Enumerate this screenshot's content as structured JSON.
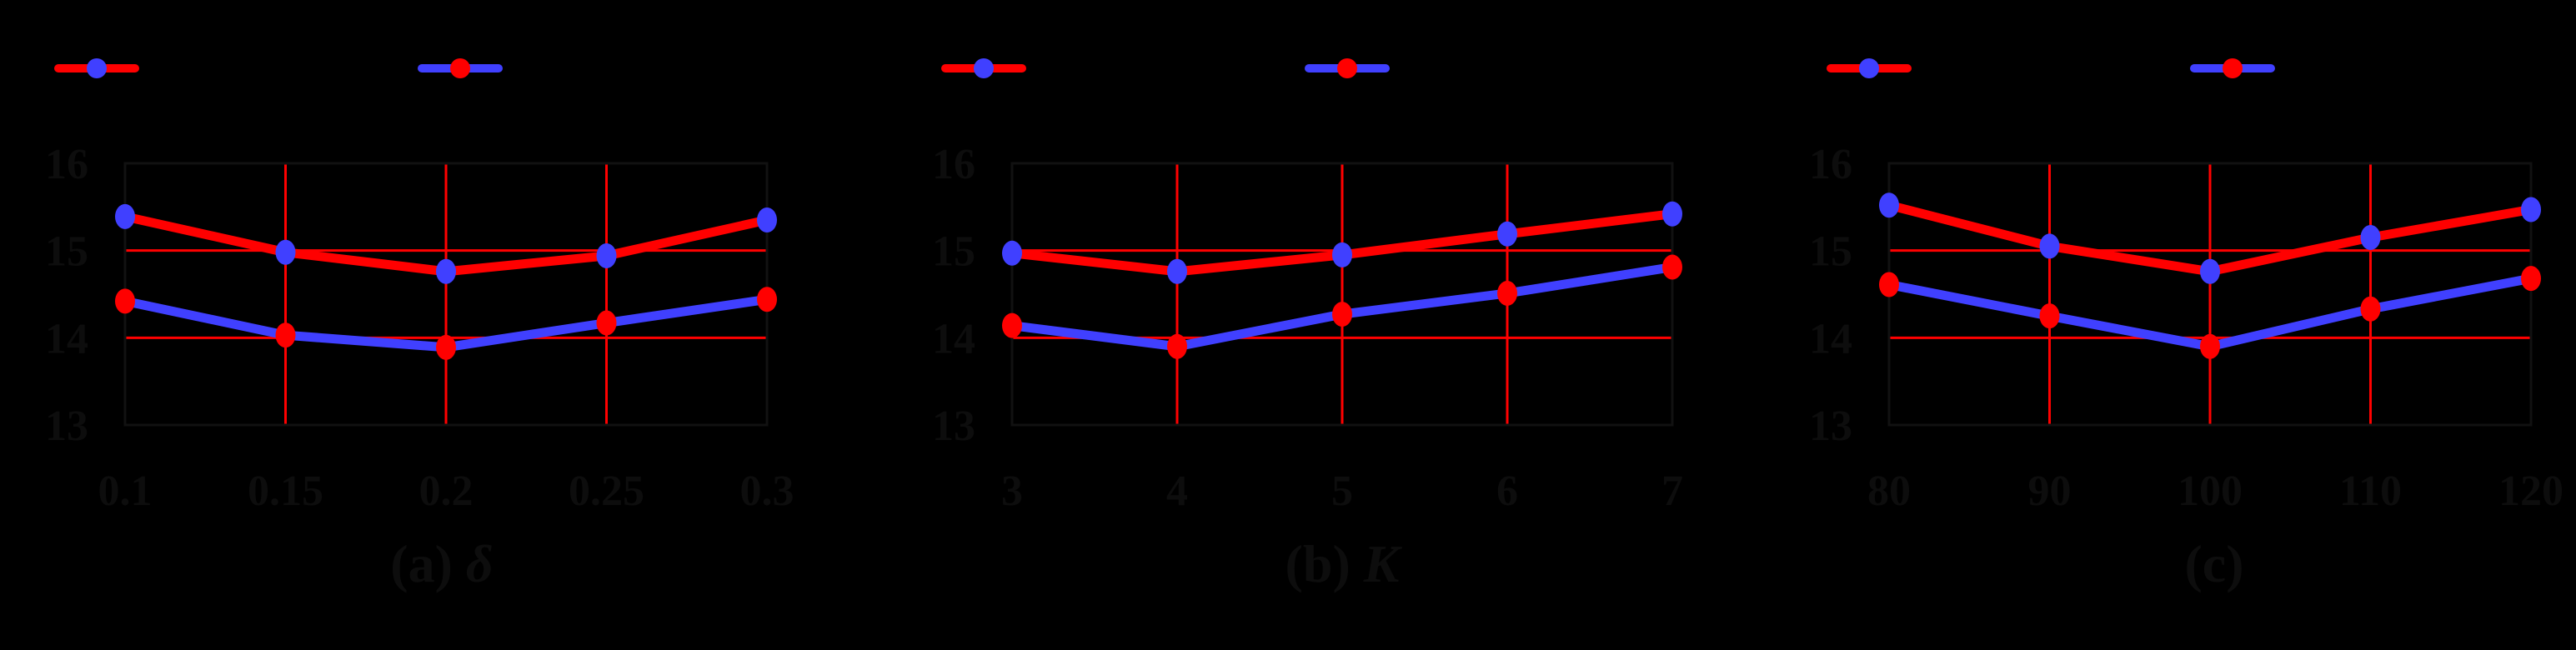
{
  "colors": {
    "background": "#000000",
    "series_red": "#ff0000",
    "series_blue": "#4040ff",
    "grid": "#ff0000",
    "frame": "#111111",
    "text": "#0d0d0d"
  },
  "legend": [
    {
      "name": "Series 1 (red line, blue markers)",
      "label": "",
      "line_color": "#ff0000",
      "marker_color": "#4040ff"
    },
    {
      "name": "Series 2 (blue line, red markers)",
      "label": "",
      "line_color": "#4040ff",
      "marker_color": "#ff0000"
    }
  ],
  "chart_data": [
    {
      "type": "line",
      "title": "(a) δ",
      "caption_prefix": "(a)",
      "caption_symbol": "δ",
      "xlabel": "δ",
      "ylabel": "",
      "categories": [
        "0.1",
        "0.15",
        "0.2",
        "0.25",
        "0.3"
      ],
      "yticks": [
        "13",
        "14",
        "15",
        "16"
      ],
      "ylim": [
        13,
        16
      ],
      "grid": true,
      "legend_position": "top",
      "series": [
        {
          "name": "Series 1 (red line, blue markers)",
          "line_color": "#ff0000",
          "marker_color": "#4040ff",
          "values": [
            15.39,
            14.98,
            14.76,
            14.94,
            15.35
          ]
        },
        {
          "name": "Series 2 (blue line, red markers)",
          "line_color": "#4040ff",
          "marker_color": "#ff0000",
          "values": [
            14.42,
            14.03,
            13.89,
            14.17,
            14.44
          ]
        }
      ]
    },
    {
      "type": "line",
      "title": "(b) K",
      "caption_prefix": "(b)",
      "caption_symbol": "K",
      "xlabel": "K",
      "ylabel": "",
      "categories": [
        "3",
        "4",
        "5",
        "6",
        "7"
      ],
      "yticks": [
        "13",
        "14",
        "15",
        "16"
      ],
      "ylim": [
        13,
        16
      ],
      "grid": true,
      "legend_position": "top",
      "series": [
        {
          "name": "Series 1 (red line, blue markers)",
          "line_color": "#ff0000",
          "marker_color": "#4040ff",
          "values": [
            14.97,
            14.76,
            14.95,
            15.19,
            15.42
          ]
        },
        {
          "name": "Series 2 (blue line, red markers)",
          "line_color": "#4040ff",
          "marker_color": "#ff0000",
          "values": [
            14.14,
            13.9,
            14.27,
            14.51,
            14.81
          ]
        }
      ]
    },
    {
      "type": "line",
      "title": "(c)",
      "caption_prefix": "(c)",
      "caption_symbol": "",
      "xlabel": "",
      "ylabel": "",
      "categories": [
        "80",
        "90",
        "100",
        "110",
        "120"
      ],
      "yticks": [
        "13",
        "14",
        "15",
        "16"
      ],
      "ylim": [
        13,
        16
      ],
      "grid": true,
      "legend_position": "top",
      "series": [
        {
          "name": "Series 1 (red line, blue markers)",
          "line_color": "#ff0000",
          "marker_color": "#4040ff",
          "values": [
            15.52,
            15.05,
            14.76,
            15.15,
            15.47
          ]
        },
        {
          "name": "Series 2 (blue line, red markers)",
          "line_color": "#4040ff",
          "marker_color": "#ff0000",
          "values": [
            14.61,
            14.25,
            13.9,
            14.33,
            14.68
          ]
        }
      ]
    }
  ]
}
